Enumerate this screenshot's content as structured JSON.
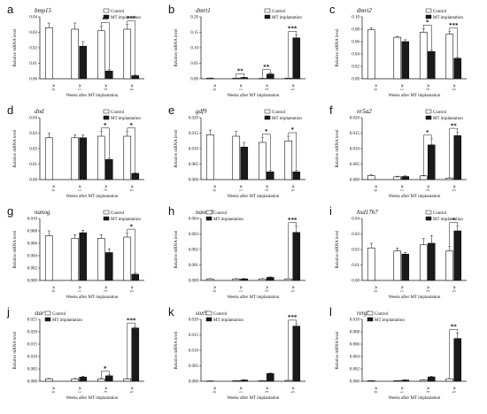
{
  "figure": {
    "xlabel": "Weeks after MT implantation",
    "ylabel": "Relative mRNA level",
    "legend": [
      "Control",
      "MT implantation"
    ],
    "colors": {
      "control": "#ffffff",
      "treatment": "#1a1a1a",
      "axis": "#111111"
    }
  },
  "chart_data": [
    {
      "type": "bar",
      "panel": "a",
      "title": "bmp15",
      "categories": [
        "0 w",
        "1 w",
        "3 w",
        "5 w"
      ],
      "xlabel": "Weeks after MT implantation",
      "ylabel": "Relative mRNA level",
      "yticks": [
        "0.00",
        "0.01",
        "0.02",
        "0.03",
        "0.04"
      ],
      "ylim": [
        0,
        0.04
      ],
      "legend_position": "top-right",
      "series": [
        {
          "name": "Control",
          "values": [
            0.033,
            0.032,
            0.031,
            0.032
          ],
          "errors": [
            0.003,
            0.004,
            0.003,
            0.003
          ]
        },
        {
          "name": "MT implantation",
          "values": [
            0.0,
            0.021,
            0.005,
            0.002
          ],
          "errors": [
            0.0,
            0.003,
            0.001,
            0.0005
          ]
        }
      ],
      "significance": [
        "",
        "",
        "**",
        "***"
      ]
    },
    {
      "type": "bar",
      "panel": "b",
      "title": "dmrt1",
      "categories": [
        "0 w",
        "1 w",
        "3 w",
        "5 w"
      ],
      "xlabel": "Weeks after MT implantation",
      "ylabel": "Relative mRNA level",
      "yticks": [
        "0.00",
        "0.05",
        "0.10",
        "0.15",
        "0.20"
      ],
      "ylim": [
        0,
        0.2
      ],
      "legend_position": "top-right",
      "series": [
        {
          "name": "Control",
          "values": [
            0.002,
            0.002,
            0.001,
            0.002
          ],
          "errors": [
            0.0005,
            0.0005,
            0.0005,
            0.0005
          ]
        },
        {
          "name": "MT implantation",
          "values": [
            0.0,
            0.004,
            0.015,
            0.132
          ],
          "errors": [
            0.0,
            0.001,
            0.003,
            0.01
          ]
        }
      ],
      "significance": [
        "",
        "**",
        "**",
        "***"
      ]
    },
    {
      "type": "bar",
      "panel": "c",
      "title": "dmrt2",
      "categories": [
        "0 w",
        "1 w",
        "3 w",
        "5 w"
      ],
      "xlabel": "Weeks after MT implantation",
      "ylabel": "Relative mRNA level",
      "yticks": [
        "0.00",
        "0.02",
        "0.04",
        "0.06",
        "0.08",
        "0.10"
      ],
      "ylim": [
        0,
        0.1
      ],
      "legend_position": "top-right",
      "series": [
        {
          "name": "Control",
          "values": [
            0.079,
            0.067,
            0.075,
            0.072
          ],
          "errors": [
            0.003,
            0.001,
            0.006,
            0.004
          ]
        },
        {
          "name": "MT implantation",
          "values": [
            0.0,
            0.06,
            0.044,
            0.033
          ],
          "errors": [
            0.0,
            0.003,
            0.003,
            0.002
          ]
        }
      ],
      "significance": [
        "",
        "",
        "*",
        "***"
      ]
    },
    {
      "type": "bar",
      "panel": "d",
      "title": "dnd",
      "categories": [
        "0 w",
        "1 w",
        "3 w",
        "5 w"
      ],
      "xlabel": "Weeks after MT implantation",
      "ylabel": "Relative mRNA level",
      "yticks": [
        "0.00",
        "0.01",
        "0.02",
        "0.03",
        "0.04"
      ],
      "ylim": [
        0,
        0.04
      ],
      "legend_position": "top-right",
      "series": [
        {
          "name": "Control",
          "values": [
            0.027,
            0.027,
            0.028,
            0.028
          ],
          "errors": [
            0.003,
            0.002,
            0.003,
            0.003
          ]
        },
        {
          "name": "MT implantation",
          "values": [
            0.0,
            0.027,
            0.013,
            0.004
          ],
          "errors": [
            0.0,
            0.002,
            0.001,
            0.0005
          ]
        }
      ],
      "significance": [
        "",
        "",
        "*",
        "*"
      ]
    },
    {
      "type": "bar",
      "panel": "e",
      "title": "gdf9",
      "categories": [
        "0 w",
        "1 w",
        "3 w",
        "5 w"
      ],
      "xlabel": "Weeks after MT implantation",
      "ylabel": "Relative mRNA level",
      "yticks": [
        "0.000",
        "0.005",
        "0.010",
        "0.015",
        "0.020"
      ],
      "ylim": [
        0,
        0.02
      ],
      "legend_position": "top-right",
      "series": [
        {
          "name": "Control",
          "values": [
            0.0145,
            0.014,
            0.012,
            0.0125
          ],
          "errors": [
            0.0015,
            0.0015,
            0.0015,
            0.0015
          ]
        },
        {
          "name": "MT implantation",
          "values": [
            0.0,
            0.0105,
            0.0025,
            0.0025
          ],
          "errors": [
            0.0,
            0.0015,
            0.0005,
            0.0005
          ]
        }
      ],
      "significance": [
        "",
        "",
        "*",
        "*"
      ]
    },
    {
      "type": "bar",
      "panel": "f",
      "title": "nr5a2",
      "categories": [
        "0 w",
        "1 w",
        "3 w",
        "5 w"
      ],
      "xlabel": "Weeks after MT implantation",
      "ylabel": "Relative mRNA level",
      "yticks": [
        "0.000",
        "0.005",
        "0.010",
        "0.015",
        "0.020"
      ],
      "ylim": [
        0,
        0.02
      ],
      "legend_position": "top-right",
      "series": [
        {
          "name": "Control",
          "values": [
            0.0013,
            0.0009,
            0.0012,
            0.0005
          ],
          "errors": [
            0.0002,
            0.0002,
            0.0002,
            0.0001
          ]
        },
        {
          "name": "MT implantation",
          "values": [
            0.0,
            0.001,
            0.0112,
            0.0142
          ],
          "errors": [
            0.0,
            0.0002,
            0.002,
            0.0012
          ]
        }
      ],
      "significance": [
        "",
        "",
        "*",
        "**"
      ]
    },
    {
      "type": "bar",
      "panel": "g",
      "title": "nanog",
      "categories": [
        "0 w",
        "1 w",
        "3 w",
        "5 w"
      ],
      "xlabel": "Weeks after MT implantation",
      "ylabel": "Relative mRNA level",
      "yticks": [
        "0.000",
        "0.002",
        "0.004",
        "0.006",
        "0.008",
        "0.010"
      ],
      "ylim": [
        0,
        0.01
      ],
      "legend_position": "top-right",
      "series": [
        {
          "name": "Control",
          "values": [
            0.0072,
            0.0068,
            0.0068,
            0.007
          ],
          "errors": [
            0.0008,
            0.0006,
            0.0006,
            0.0007
          ]
        },
        {
          "name": "MT implantation",
          "values": [
            0.0,
            0.0077,
            0.0045,
            0.001
          ],
          "errors": [
            0.0,
            0.0004,
            0.0006,
            0.0002
          ]
        }
      ],
      "significance": [
        "",
        "",
        "",
        "*"
      ]
    },
    {
      "type": "bar",
      "panel": "h",
      "title": "nanos2",
      "categories": [
        "0 w",
        "1 w",
        "3 w",
        "5 w"
      ],
      "xlabel": "Weeks after MT implantation",
      "ylabel": "Relative mRNA level",
      "yticks": [
        "0.000",
        "0.001",
        "0.002",
        "0.003",
        "0.004"
      ],
      "ylim": [
        0,
        0.004
      ],
      "legend_position": "top-left",
      "series": [
        {
          "name": "Control",
          "values": [
            0.0001,
            0.0001,
            0.0001,
            0.0001
          ],
          "errors": [
            2e-05,
            2e-05,
            2e-05,
            2e-05
          ]
        },
        {
          "name": "MT implantation",
          "values": [
            0.0,
            0.0001,
            0.0002,
            0.0031
          ],
          "errors": [
            0.0,
            2e-05,
            3e-05,
            0.0004
          ]
        }
      ],
      "significance": [
        "",
        "",
        "",
        "***"
      ]
    },
    {
      "type": "bar",
      "panel": "i",
      "title": "hsd17b7",
      "categories": [
        "0 w",
        "1 w",
        "3 w",
        "5 w"
      ],
      "xlabel": "Weeks after MT implantation",
      "ylabel": "Relative mRNA level",
      "yticks": [
        "0.00",
        "0.01",
        "0.02",
        "0.03",
        "0.04"
      ],
      "ylim": [
        0,
        0.04
      ],
      "legend_position": "top-right",
      "series": [
        {
          "name": "Control",
          "values": [
            0.021,
            0.019,
            0.023,
            0.019
          ],
          "errors": [
            0.003,
            0.002,
            0.004,
            0.003
          ]
        },
        {
          "name": "MT implantation",
          "values": [
            0.0,
            0.017,
            0.024,
            0.032
          ],
          "errors": [
            0.0,
            0.001,
            0.005,
            0.003
          ]
        }
      ],
      "significance": [
        "",
        "",
        "",
        "*"
      ]
    },
    {
      "type": "bar",
      "panel": "j",
      "title": "star",
      "categories": [
        "0 w",
        "1 w",
        "3 w",
        "5 w"
      ],
      "xlabel": "Weeks after MT implantation",
      "ylabel": "Relative mRNA level",
      "yticks": [
        "0.000",
        "0.005",
        "0.010",
        "0.015",
        "0.020",
        "0.025"
      ],
      "ylim": [
        0,
        0.025
      ],
      "legend_position": "top-left",
      "series": [
        {
          "name": "Control",
          "values": [
            0.001,
            0.001,
            0.001,
            0.001
          ],
          "errors": [
            0.0002,
            0.0002,
            0.0002,
            0.0002
          ]
        },
        {
          "name": "MT implantation",
          "values": [
            0.0,
            0.0017,
            0.0022,
            0.0215
          ],
          "errors": [
            0.0,
            0.0003,
            0.0004,
            0.0006
          ]
        }
      ],
      "significance": [
        "",
        "",
        "*",
        "***"
      ]
    },
    {
      "type": "bar",
      "panel": "k",
      "title": "sox9",
      "categories": [
        "0 w",
        "1 w",
        "3 w",
        "5 w"
      ],
      "xlabel": "Weeks after MT implantation",
      "ylabel": "Relative mRNA level",
      "yticks": [
        "0.000",
        "0.005",
        "0.010",
        "0.015",
        "0.020"
      ],
      "ylim": [
        0,
        0.02
      ],
      "legend_position": "top-left",
      "series": [
        {
          "name": "Control",
          "values": [
            0.0001,
            0.0002,
            0.0002,
            0.0003
          ],
          "errors": [
            3e-05,
            3e-05,
            3e-05,
            3e-05
          ]
        },
        {
          "name": "MT implantation",
          "values": [
            0.0,
            0.0004,
            0.0025,
            0.0178
          ],
          "errors": [
            0.0,
            0.0001,
            0.0002,
            0.0008
          ]
        }
      ],
      "significance": [
        "",
        "",
        "",
        "***"
      ]
    },
    {
      "type": "bar",
      "panel": "l",
      "title": "rergl",
      "categories": [
        "0 w",
        "1 w",
        "3 w",
        "5 w"
      ],
      "xlabel": "Weeks after MT implantation",
      "ylabel": "Relative mRNA level",
      "yticks": [
        "0.000",
        "0.002",
        "0.004",
        "0.006",
        "0.008",
        "0.010"
      ],
      "ylim": [
        0,
        0.01
      ],
      "legend_position": "top-left",
      "series": [
        {
          "name": "Control",
          "values": [
            0.0001,
            0.0001,
            0.0002,
            0.0004
          ],
          "errors": [
            3e-05,
            3e-05,
            3e-05,
            5e-05
          ]
        },
        {
          "name": "MT implantation",
          "values": [
            0.0,
            0.0002,
            0.0007,
            0.0069
          ],
          "errors": [
            0.0,
            3e-05,
            0.0001,
            0.0009
          ]
        }
      ],
      "significance": [
        "",
        "",
        "",
        "**"
      ]
    }
  ]
}
